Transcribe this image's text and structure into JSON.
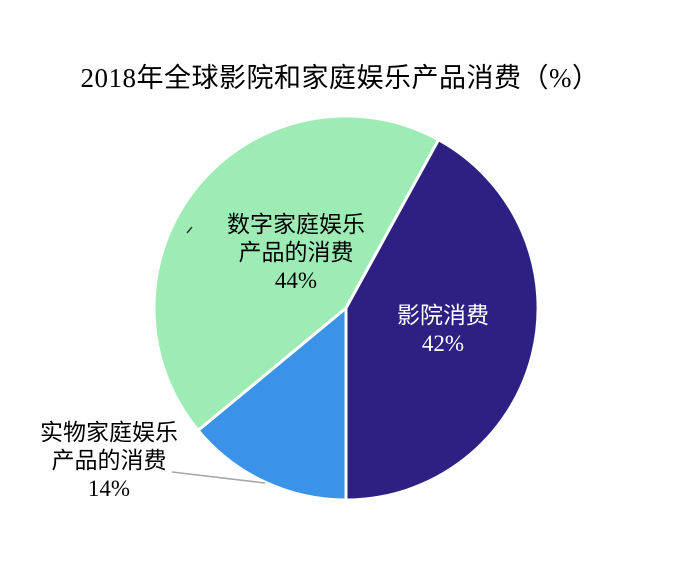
{
  "chart_data": {
    "type": "pie",
    "title": "2018年全球影院和家庭娱乐产品消费（%）",
    "unit": "%",
    "legend": "none",
    "donut": false,
    "direction": "clockwise",
    "start_angle_deg": 28.8,
    "slices": [
      {
        "name": "影院消费",
        "value": 42,
        "color": "#2D2083",
        "label_text": "影院消费\n42%",
        "label_color": "#FFFFFF",
        "label_position": "inside"
      },
      {
        "name": "实物家庭娱乐产品的消费",
        "value": 14,
        "color": "#3B92E9",
        "label_text": "实物家庭娱乐\n产品的消费\n14%",
        "label_color": "#000000",
        "label_position": "outside"
      },
      {
        "name": "数字家庭娱乐产品的消费",
        "value": 44,
        "color": "#9DECB6",
        "label_text": "数字家庭娱乐\n产品的消费\n44%",
        "label_color": "#000000",
        "label_position": "inside"
      }
    ],
    "colors": {
      "background": "#FFFFFF",
      "slice_border": "#FFFFFF",
      "leader_line": "#A6A6A6",
      "label_tick": "#333333"
    }
  }
}
